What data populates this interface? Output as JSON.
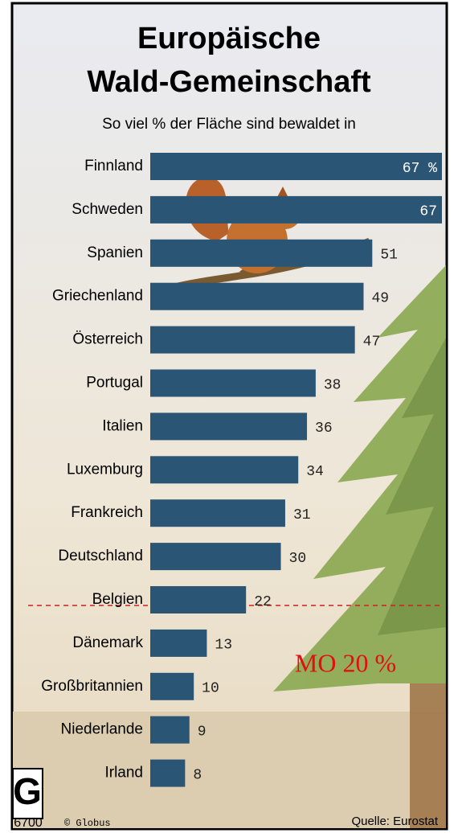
{
  "chart_data": {
    "type": "bar",
    "orientation": "horizontal",
    "title": [
      "Europäische",
      "Wald-Gemeinschaft"
    ],
    "subtitle": "So viel % der Fläche sind bewaldet in",
    "categories": [
      "Finnland",
      "Schweden",
      "Spanien",
      "Griechenland",
      "Österreich",
      "Portugal",
      "Italien",
      "Luxemburg",
      "Frankreich",
      "Deutschland",
      "Belgien",
      "Dänemark",
      "Großbritannien",
      "Niederlande",
      "Irland"
    ],
    "values": [
      67,
      67,
      51,
      49,
      47,
      38,
      36,
      34,
      31,
      30,
      22,
      13,
      10,
      9,
      8
    ],
    "value_labels": [
      "67 %",
      "67",
      "51",
      "49",
      "47",
      "38",
      "36",
      "34",
      "31",
      "30",
      "22",
      "13",
      "10",
      "9",
      "8"
    ],
    "color": "#2b5575",
    "xlim": [
      0,
      67
    ],
    "annotation": "MO 20 %",
    "logo": "G",
    "number": "6700",
    "credit": "© Globus",
    "source": "Quelle: Eurostat"
  }
}
